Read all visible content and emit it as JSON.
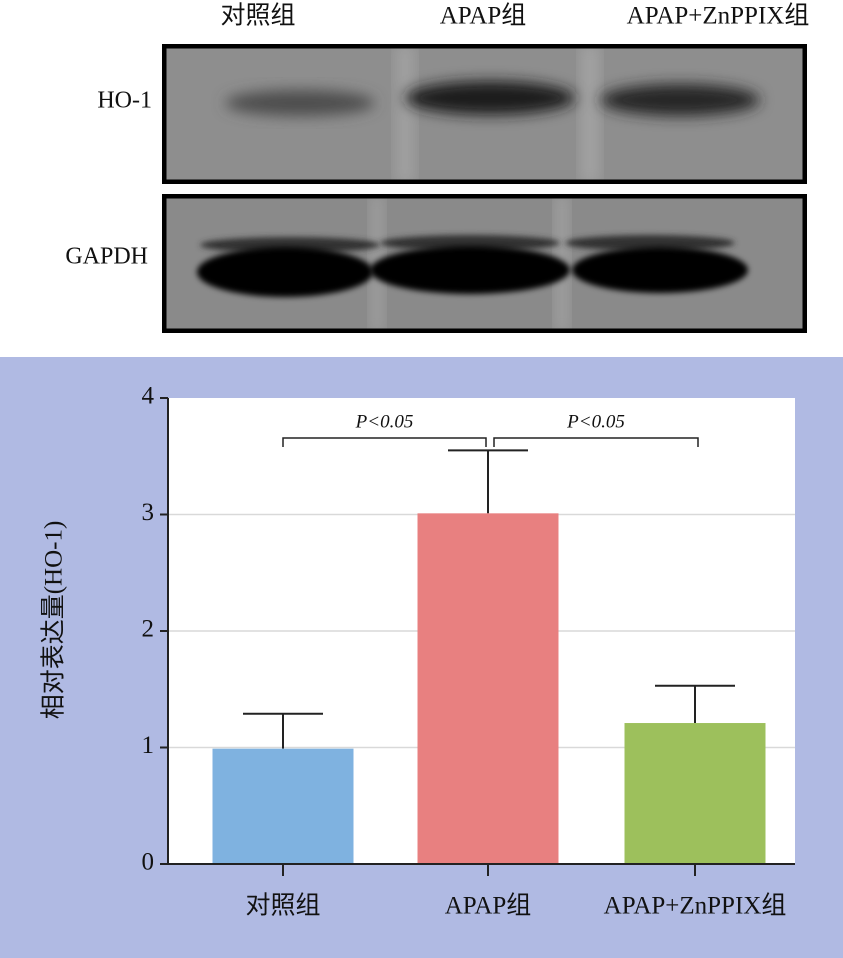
{
  "blot": {
    "columns": [
      "对照组",
      "APAP组",
      "APAP+ZnPPIX组"
    ],
    "rows": [
      "HO-1",
      "GAPDH"
    ]
  },
  "chart_data": {
    "type": "bar",
    "ylabel": "相对表达量(HO-1)",
    "categories": [
      "对照组",
      "APAP组",
      "APAP+ZnPPIX组"
    ],
    "values": [
      0.99,
      3.01,
      1.21
    ],
    "errors": [
      0.3,
      0.54,
      0.32
    ],
    "colors": [
      "#7fb2e0",
      "#e88080",
      "#9dc05c"
    ],
    "ylim": [
      0,
      4
    ],
    "yticks": [
      0,
      1,
      2,
      3,
      4
    ],
    "grid": true,
    "annotations": [
      "P<0.05",
      "P<0.05"
    ]
  }
}
